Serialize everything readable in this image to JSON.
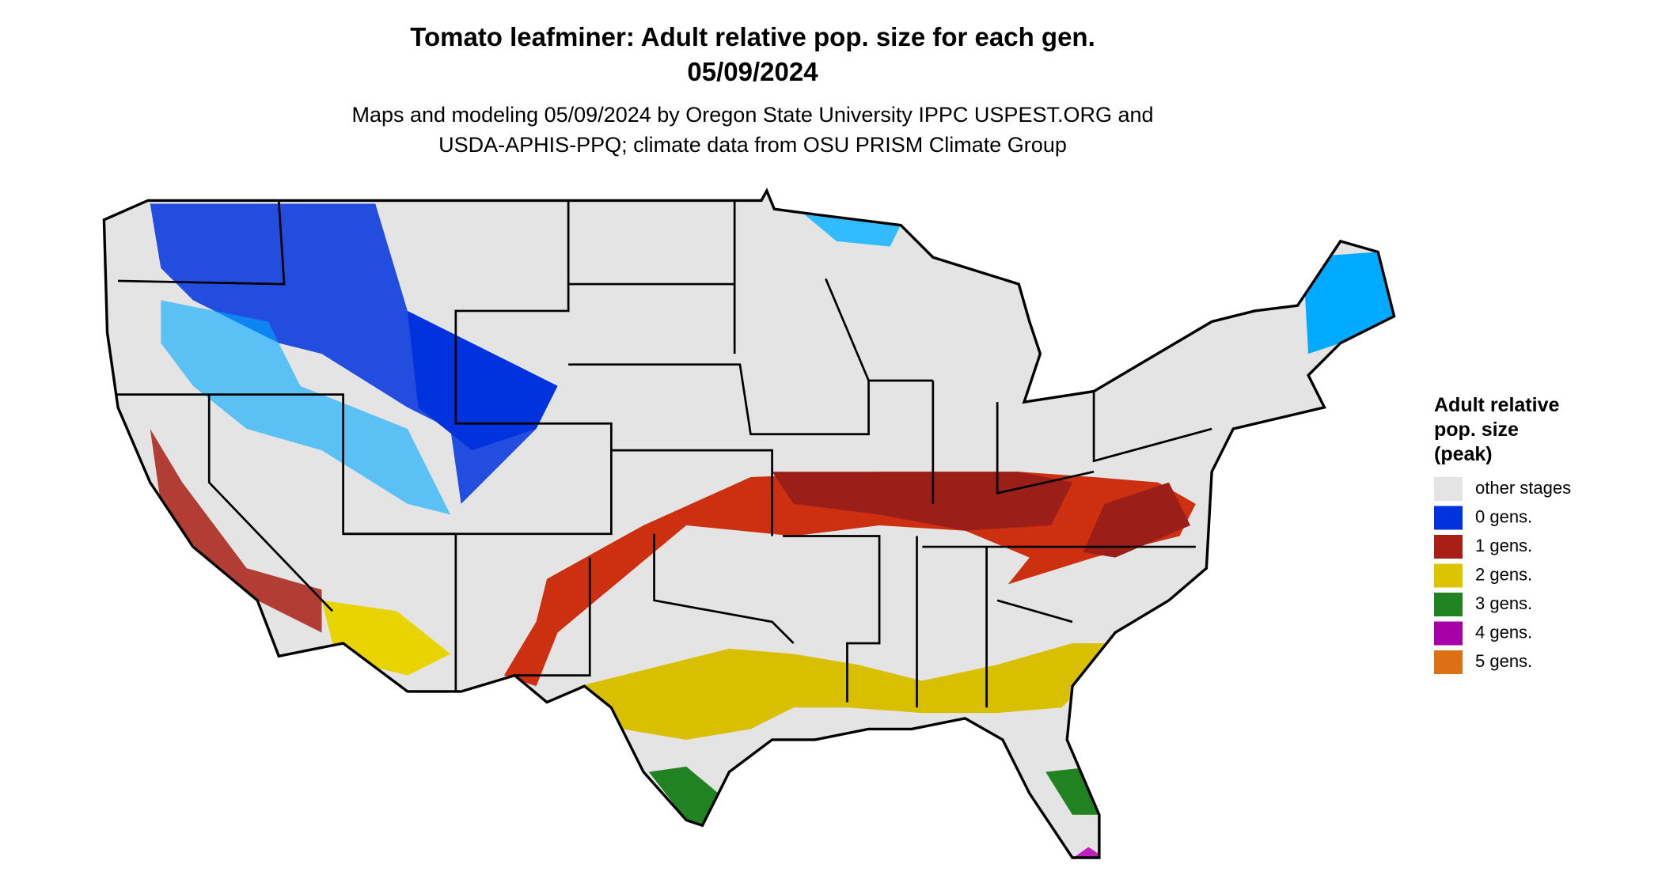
{
  "header": {
    "title": [
      "Tomato leafminer: Adult relative pop. size for each gen.",
      "05/09/2024"
    ],
    "subtitle": [
      "Maps and modeling 05/09/2024 by Oregon State University IPPC USPEST.ORG and",
      "USDA-APHIS-PPQ; climate data from OSU PRISM Climate Group"
    ]
  },
  "legend": {
    "title": [
      "Adult relative",
      "pop. size",
      "(peak)"
    ],
    "items": [
      {
        "label": "other stages",
        "color": "#e4e4e4"
      },
      {
        "label": "0 gens.",
        "color": "#0033dd"
      },
      {
        "label": "1 gens.",
        "color": "#a82015"
      },
      {
        "label": "2 gens.",
        "color": "#dcc400"
      },
      {
        "label": "3 gens.",
        "color": "#218221"
      },
      {
        "label": "4 gens.",
        "color": "#a800a8"
      },
      {
        "label": "5 gens.",
        "color": "#dc7014"
      }
    ]
  }
}
